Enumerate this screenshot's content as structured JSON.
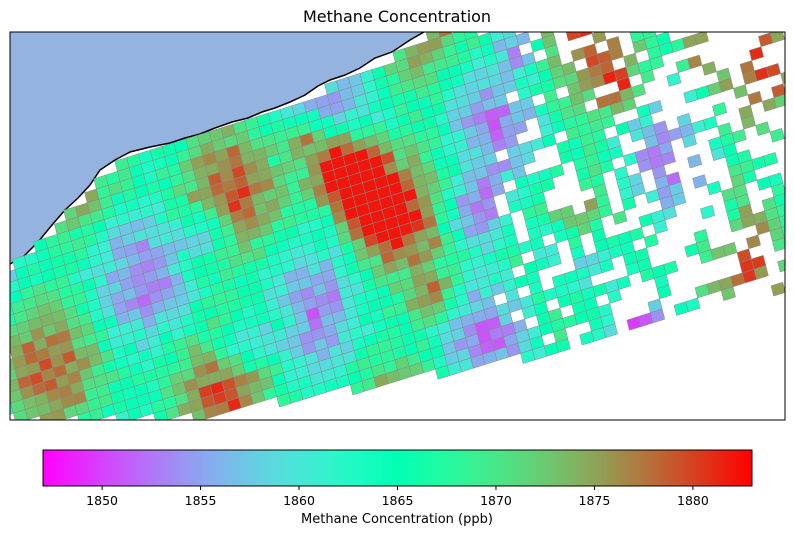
{
  "title": "Methane Concentration",
  "colorbar": {
    "label": "Methane Concentration (ppb)",
    "min": 1847,
    "max": 1883,
    "ticks": [
      1850,
      1855,
      1860,
      1865,
      1870,
      1875,
      1880
    ],
    "tick_labels": [
      "1850",
      "1855",
      "1860",
      "1865",
      "1870",
      "1875",
      "1880"
    ],
    "colormap": "rainbow"
  },
  "colors": {
    "water": "#94b4df",
    "coastline": "#000000",
    "cell_edge": "#8a8a8a",
    "background": "#ffffff"
  },
  "chart_data": {
    "type": "heatmap",
    "title": "Methane Concentration",
    "value_label": "Methane Concentration (ppb)",
    "range": [
      1847,
      1883
    ],
    "colormap": "rainbow",
    "typical_range": [
      1855,
      1872
    ],
    "high_spots": [
      1880,
      1881,
      1882
    ],
    "low_spots": [
      1848,
      1850,
      1851
    ]
  }
}
